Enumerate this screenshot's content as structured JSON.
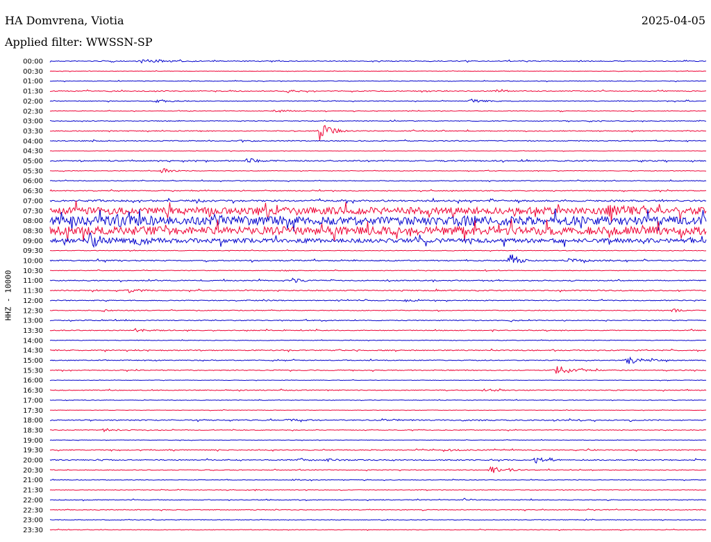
{
  "header": {
    "station": "HA Domvrena, Viotia",
    "date": "2025-04-05",
    "filter": "Applied filter: WWSSN-SP"
  },
  "chart_data": {
    "type": "line",
    "ylabel": "HHZ - 10000",
    "colors": [
      "#0000cc",
      "#ee0033"
    ],
    "rows": [
      {
        "label": "00:00",
        "noise": 0.6,
        "events": [
          [
            0.14,
            2.5,
            0.03
          ]
        ]
      },
      {
        "label": "00:30",
        "noise": 0.3,
        "events": []
      },
      {
        "label": "01:00",
        "noise": 0.4,
        "events": []
      },
      {
        "label": "01:30",
        "noise": 0.6,
        "events": [
          [
            0.36,
            2.5,
            0.01
          ],
          [
            0.68,
            1.5,
            0.01
          ]
        ]
      },
      {
        "label": "02:00",
        "noise": 0.5,
        "events": [
          [
            0.16,
            2.5,
            0.02
          ],
          [
            0.64,
            2.5,
            0.02
          ]
        ]
      },
      {
        "label": "02:30",
        "noise": 0.4,
        "events": [
          [
            0.34,
            2,
            0.02
          ]
        ]
      },
      {
        "label": "03:00",
        "noise": 0.5,
        "events": []
      },
      {
        "label": "03:30",
        "noise": 0.6,
        "events": [
          [
            0.41,
            18,
            0.012
          ]
        ]
      },
      {
        "label": "04:00",
        "noise": 0.6,
        "events": [
          [
            0.29,
            2,
            0.01
          ]
        ]
      },
      {
        "label": "04:30",
        "noise": 0.3,
        "events": []
      },
      {
        "label": "05:00",
        "noise": 0.8,
        "events": [
          [
            0.3,
            6,
            0.01
          ]
        ]
      },
      {
        "label": "05:30",
        "noise": 0.4,
        "events": [
          [
            0.17,
            5,
            0.012
          ]
        ]
      },
      {
        "label": "06:00",
        "noise": 0.5,
        "events": []
      },
      {
        "label": "06:30",
        "noise": 0.6,
        "events": []
      },
      {
        "label": "07:00",
        "noise": 1.2,
        "events": []
      },
      {
        "label": "07:30",
        "noise": 5,
        "events": [
          [
            0.85,
            4,
            0.03
          ]
        ]
      },
      {
        "label": "08:00",
        "noise": 6,
        "events": [
          [
            0.1,
            4,
            0.03
          ],
          [
            0.25,
            4,
            0.02
          ],
          [
            0.62,
            4,
            0.03
          ]
        ]
      },
      {
        "label": "08:30",
        "noise": 6,
        "events": []
      },
      {
        "label": "09:00",
        "noise": 3,
        "events": [
          [
            0.06,
            9,
            0.02
          ],
          [
            0.13,
            5,
            0.02
          ]
        ]
      },
      {
        "label": "09:30",
        "noise": 0.4,
        "events": []
      },
      {
        "label": "10:00",
        "noise": 0.8,
        "events": [
          [
            0.7,
            14,
            0.01
          ],
          [
            0.79,
            3,
            0.02
          ]
        ]
      },
      {
        "label": "10:30",
        "noise": 0.4,
        "events": [
          [
            0.35,
            2,
            0.008
          ]
        ]
      },
      {
        "label": "11:00",
        "noise": 0.7,
        "events": [
          [
            0.37,
            4,
            0.012
          ]
        ]
      },
      {
        "label": "11:30",
        "noise": 0.7,
        "events": [
          [
            0.12,
            3,
            0.015
          ]
        ]
      },
      {
        "label": "12:00",
        "noise": 0.6,
        "events": [
          [
            0.32,
            2,
            0.008
          ],
          [
            0.54,
            2,
            0.008
          ]
        ]
      },
      {
        "label": "12:30",
        "noise": 0.5,
        "events": [
          [
            0.08,
            2,
            0.008
          ],
          [
            0.95,
            4,
            0.008
          ]
        ]
      },
      {
        "label": "13:00",
        "noise": 0.6,
        "events": [
          [
            0.7,
            2,
            0.008
          ]
        ]
      },
      {
        "label": "13:30",
        "noise": 0.6,
        "events": [
          [
            0.13,
            2.5,
            0.015
          ]
        ]
      },
      {
        "label": "14:00",
        "noise": 0.4,
        "events": []
      },
      {
        "label": "14:30",
        "noise": 0.7,
        "events": []
      },
      {
        "label": "15:00",
        "noise": 0.6,
        "events": [
          [
            0.88,
            6,
            0.02
          ]
        ]
      },
      {
        "label": "15:30",
        "noise": 0.6,
        "events": [
          [
            0.77,
            8,
            0.02
          ]
        ]
      },
      {
        "label": "16:00",
        "noise": 0.3,
        "events": []
      },
      {
        "label": "16:30",
        "noise": 0.6,
        "events": [
          [
            0.66,
            3,
            0.012
          ]
        ]
      },
      {
        "label": "17:00",
        "noise": 0.4,
        "events": []
      },
      {
        "label": "17:30",
        "noise": 0.3,
        "events": []
      },
      {
        "label": "18:00",
        "noise": 0.7,
        "events": [
          [
            0.36,
            1.5,
            0.02
          ],
          [
            0.51,
            1.5,
            0.02
          ],
          [
            0.63,
            1.5,
            0.02
          ]
        ]
      },
      {
        "label": "18:30",
        "noise": 0.5,
        "events": [
          [
            0.08,
            2,
            0.02
          ]
        ]
      },
      {
        "label": "19:00",
        "noise": 0.3,
        "events": []
      },
      {
        "label": "19:30",
        "noise": 0.6,
        "events": [
          [
            0.6,
            1.5,
            0.02
          ],
          [
            0.82,
            1.5,
            0.01
          ]
        ]
      },
      {
        "label": "20:00",
        "noise": 0.7,
        "events": [
          [
            0.38,
            3,
            0.01
          ],
          [
            0.42,
            2,
            0.015
          ],
          [
            0.74,
            6,
            0.012
          ]
        ]
      },
      {
        "label": "20:30",
        "noise": 0.5,
        "events": [
          [
            0.67,
            7,
            0.01
          ],
          [
            0.7,
            2,
            0.01
          ]
        ]
      },
      {
        "label": "21:00",
        "noise": 0.4,
        "events": [
          [
            0.37,
            2,
            0.01
          ]
        ]
      },
      {
        "label": "21:30",
        "noise": 0.4,
        "events": []
      },
      {
        "label": "22:00",
        "noise": 0.5,
        "events": [
          [
            0.63,
            2.5,
            0.008
          ]
        ]
      },
      {
        "label": "22:30",
        "noise": 0.5,
        "events": []
      },
      {
        "label": "23:00",
        "noise": 0.4,
        "events": []
      },
      {
        "label": "23:30",
        "noise": 0.4,
        "events": []
      }
    ]
  }
}
